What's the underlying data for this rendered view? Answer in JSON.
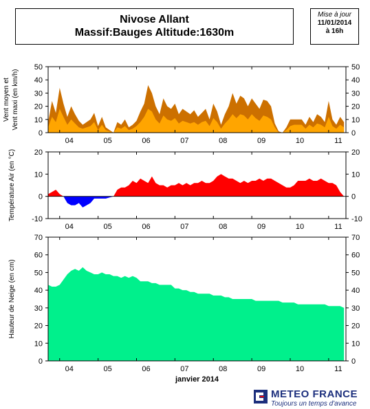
{
  "header": {
    "title_line1": "Nivose Allant",
    "title_line2": "Massif:Bauges Altitude:1630m",
    "update_label": "Mise à jour",
    "update_date": "11/01/2014",
    "update_time": "à 16h"
  },
  "logo": {
    "name": "METEO FRANCE",
    "tagline": "Toujours un temps d'avance"
  },
  "colors": {
    "wind_max": "#cc7000",
    "wind_mean": "#ffa500",
    "temp_pos": "#ff0000",
    "temp_neg": "#0000ff",
    "snow": "#00f08c"
  },
  "chart_data": [
    {
      "type": "area",
      "ylabel": "Vent moyen et\nVent maxi (en km/h)",
      "ylim": [
        0,
        50
      ],
      "yticks": [
        0,
        10,
        20,
        30,
        40,
        50
      ],
      "xlim": [
        3.7,
        11.45
      ],
      "x_ticks": [
        "04",
        "05",
        "06",
        "07",
        "08",
        "09",
        "10",
        "11"
      ],
      "x": [
        3.7,
        3.8,
        3.9,
        4.0,
        4.1,
        4.2,
        4.3,
        4.4,
        4.5,
        4.6,
        4.7,
        4.8,
        4.9,
        5.0,
        5.1,
        5.2,
        5.3,
        5.4,
        5.5,
        5.6,
        5.7,
        5.8,
        5.9,
        6.0,
        6.1,
        6.2,
        6.3,
        6.4,
        6.5,
        6.6,
        6.7,
        6.8,
        6.9,
        7.0,
        7.1,
        7.2,
        7.3,
        7.4,
        7.5,
        7.6,
        7.7,
        7.8,
        7.9,
        8.0,
        8.1,
        8.2,
        8.3,
        8.4,
        8.5,
        8.6,
        8.7,
        8.8,
        8.9,
        9.0,
        9.1,
        9.2,
        9.3,
        9.4,
        9.5,
        9.6,
        9.7,
        9.8,
        9.9,
        10.0,
        10.1,
        10.2,
        10.3,
        10.4,
        10.5,
        10.6,
        10.7,
        10.8,
        10.9,
        11.0,
        11.1,
        11.2,
        11.3,
        11.4
      ],
      "series": [
        {
          "name": "Vent maxi",
          "values": [
            8,
            24,
            15,
            34,
            22,
            12,
            20,
            14,
            9,
            6,
            8,
            10,
            15,
            5,
            12,
            4,
            2,
            0,
            8,
            6,
            10,
            4,
            6,
            9,
            16,
            22,
            36,
            30,
            20,
            14,
            26,
            20,
            18,
            22,
            14,
            18,
            16,
            14,
            17,
            12,
            15,
            18,
            10,
            22,
            16,
            6,
            14,
            20,
            30,
            22,
            28,
            26,
            20,
            26,
            22,
            18,
            25,
            24,
            20,
            7,
            1,
            0,
            4,
            10,
            10,
            10,
            10,
            6,
            12,
            8,
            14,
            12,
            8,
            24,
            10,
            6,
            12,
            8
          ]
        },
        {
          "name": "Vent moyen",
          "values": [
            4,
            12,
            8,
            18,
            12,
            6,
            10,
            7,
            4,
            3,
            4,
            5,
            8,
            2,
            6,
            2,
            1,
            0,
            4,
            3,
            5,
            2,
            3,
            5,
            8,
            12,
            18,
            16,
            10,
            7,
            13,
            10,
            9,
            11,
            7,
            9,
            8,
            7,
            8,
            6,
            8,
            9,
            5,
            11,
            8,
            3,
            7,
            10,
            14,
            11,
            14,
            13,
            10,
            14,
            11,
            9,
            13,
            12,
            10,
            4,
            0,
            0,
            2,
            5,
            6,
            6,
            6,
            3,
            6,
            4,
            7,
            6,
            4,
            12,
            5,
            3,
            6,
            4
          ]
        }
      ]
    },
    {
      "type": "area",
      "ylabel": "Température Air (en °C)",
      "ylim": [
        -10,
        20
      ],
      "yticks": [
        -10,
        0,
        10,
        20
      ],
      "xlim": [
        3.7,
        11.45
      ],
      "x_ticks": [
        "04",
        "05",
        "06",
        "07",
        "08",
        "09",
        "10",
        "11"
      ],
      "x": [
        3.7,
        3.8,
        3.9,
        4.0,
        4.1,
        4.2,
        4.3,
        4.4,
        4.5,
        4.6,
        4.7,
        4.8,
        4.9,
        5.0,
        5.1,
        5.2,
        5.3,
        5.4,
        5.5,
        5.6,
        5.7,
        5.8,
        5.9,
        6.0,
        6.1,
        6.2,
        6.3,
        6.4,
        6.5,
        6.6,
        6.7,
        6.8,
        6.9,
        7.0,
        7.1,
        7.2,
        7.3,
        7.4,
        7.5,
        7.6,
        7.7,
        7.8,
        7.9,
        8.0,
        8.1,
        8.2,
        8.3,
        8.4,
        8.5,
        8.6,
        8.7,
        8.8,
        8.9,
        9.0,
        9.1,
        9.2,
        9.3,
        9.4,
        9.5,
        9.6,
        9.7,
        9.8,
        9.9,
        10.0,
        10.1,
        10.2,
        10.3,
        10.4,
        10.5,
        10.6,
        10.7,
        10.8,
        10.9,
        11.0,
        11.1,
        11.2,
        11.3,
        11.4
      ],
      "series": [
        {
          "name": "Température",
          "values": [
            1,
            2,
            3,
            1,
            0,
            -3,
            -4,
            -4,
            -3,
            -5,
            -4,
            -3,
            -1,
            -1,
            -1,
            -1,
            -0.5,
            0,
            3,
            4,
            4,
            5,
            7,
            6,
            8,
            7,
            6,
            9,
            6,
            5,
            5,
            4,
            5,
            5,
            6,
            5,
            6,
            5,
            6,
            6,
            7,
            6,
            6,
            7,
            9,
            10,
            9,
            8,
            8,
            7,
            6,
            7,
            6,
            7,
            7,
            8,
            7,
            8,
            8,
            7,
            6,
            5,
            4,
            4,
            5,
            7,
            7,
            7,
            8,
            7,
            7,
            8,
            7,
            6,
            6,
            5,
            2,
            0
          ]
        }
      ]
    },
    {
      "type": "area",
      "ylabel": "Hauteur de Neige (en cm)",
      "xlabel": "janvier 2014",
      "ylim": [
        0,
        70
      ],
      "yticks": [
        0,
        10,
        20,
        30,
        40,
        50,
        60,
        70
      ],
      "xlim": [
        3.7,
        11.45
      ],
      "x_ticks": [
        "04",
        "05",
        "06",
        "07",
        "08",
        "09",
        "10",
        "11"
      ],
      "x": [
        3.7,
        3.8,
        3.9,
        4.0,
        4.1,
        4.2,
        4.3,
        4.4,
        4.5,
        4.6,
        4.7,
        4.8,
        4.9,
        5.0,
        5.1,
        5.2,
        5.3,
        5.4,
        5.5,
        5.6,
        5.7,
        5.8,
        5.9,
        6.0,
        6.1,
        6.2,
        6.3,
        6.4,
        6.5,
        6.6,
        6.7,
        6.8,
        6.9,
        7.0,
        7.1,
        7.2,
        7.3,
        7.4,
        7.5,
        7.6,
        7.7,
        7.8,
        7.9,
        8.0,
        8.1,
        8.2,
        8.3,
        8.4,
        8.5,
        8.6,
        8.7,
        8.8,
        8.9,
        9.0,
        9.1,
        9.2,
        9.3,
        9.4,
        9.5,
        9.6,
        9.7,
        9.8,
        9.9,
        10.0,
        10.1,
        10.2,
        10.3,
        10.4,
        10.5,
        10.6,
        10.7,
        10.8,
        10.9,
        11.0,
        11.1,
        11.2,
        11.3,
        11.4
      ],
      "series": [
        {
          "name": "Hauteur de neige",
          "values": [
            43,
            42,
            42,
            43,
            46,
            49,
            51,
            52,
            51,
            53,
            51,
            50,
            49,
            49,
            50,
            49,
            49,
            48,
            48,
            47,
            48,
            47,
            48,
            47,
            45,
            45,
            45,
            44,
            44,
            43,
            43,
            43,
            43,
            41,
            41,
            40,
            40,
            39,
            39,
            38,
            38,
            38,
            38,
            37,
            37,
            37,
            36,
            36,
            35,
            35,
            35,
            35,
            35,
            35,
            34,
            34,
            34,
            34,
            34,
            34,
            34,
            33,
            33,
            33,
            33,
            32,
            32,
            32,
            32,
            32,
            32,
            32,
            32,
            31,
            31,
            31,
            31,
            30
          ]
        }
      ]
    }
  ]
}
